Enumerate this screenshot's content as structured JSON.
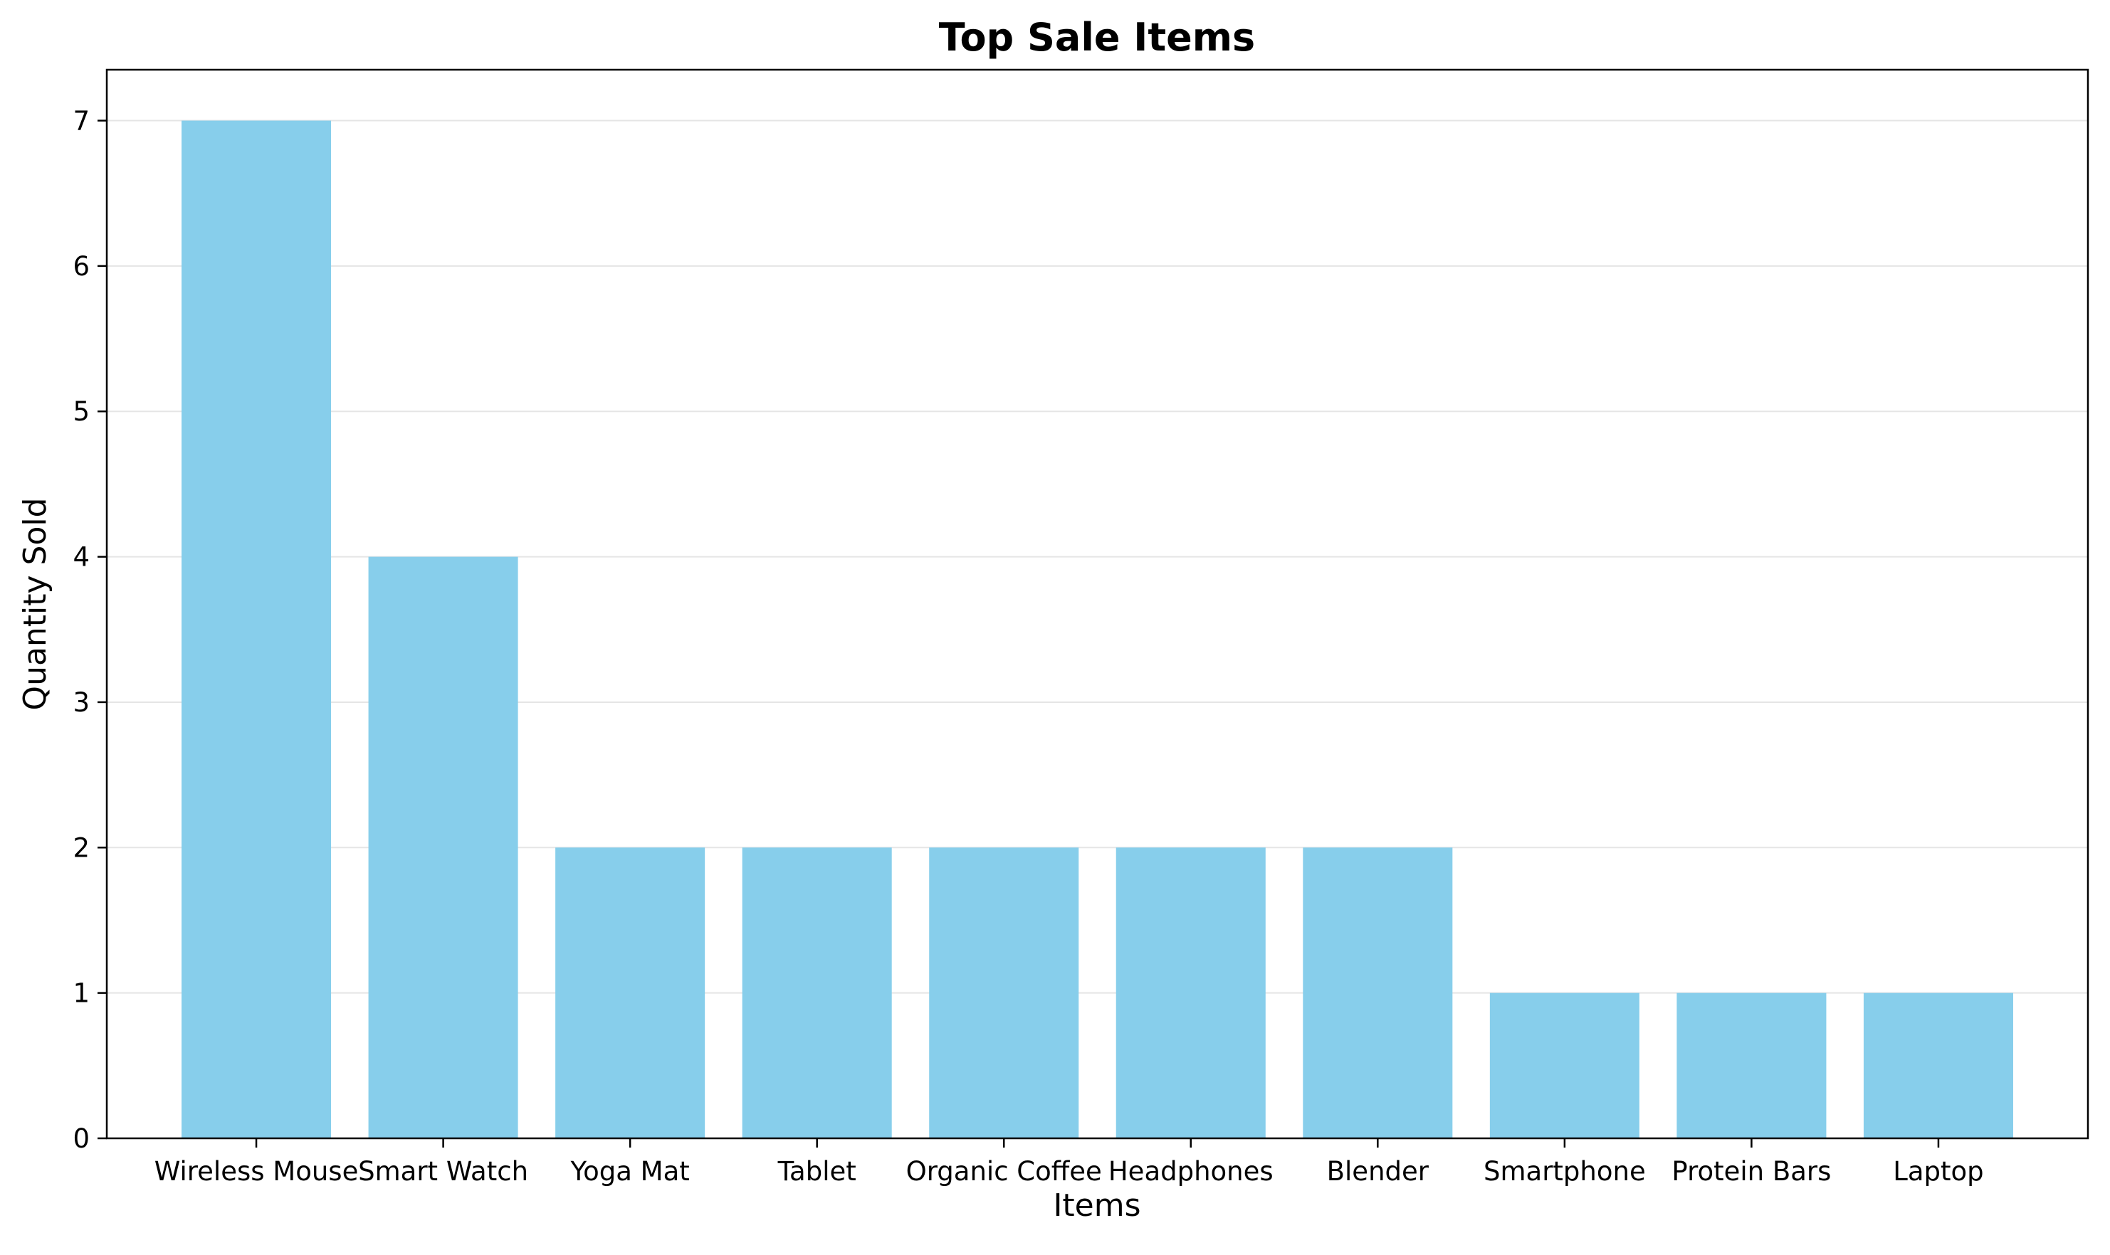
{
  "chart_data": {
    "type": "bar",
    "title": "Top Sale Items",
    "xlabel": "Items",
    "ylabel": "Quantity Sold",
    "categories": [
      "Wireless Mouse",
      "Smart Watch",
      "Yoga Mat",
      "Tablet",
      "Organic Coffee",
      "Headphones",
      "Blender",
      "Smartphone",
      "Protein Bars",
      "Laptop"
    ],
    "values": [
      7,
      4,
      2,
      2,
      2,
      2,
      2,
      1,
      1,
      1
    ],
    "yticks": [
      0,
      1,
      2,
      3,
      4,
      5,
      6,
      7
    ],
    "ylim": [
      0,
      7.35
    ],
    "grid": "y",
    "legend": "none",
    "colors": {
      "bar": "#87ceeb",
      "grid": "#e5e5e5",
      "axis": "#000000"
    }
  }
}
